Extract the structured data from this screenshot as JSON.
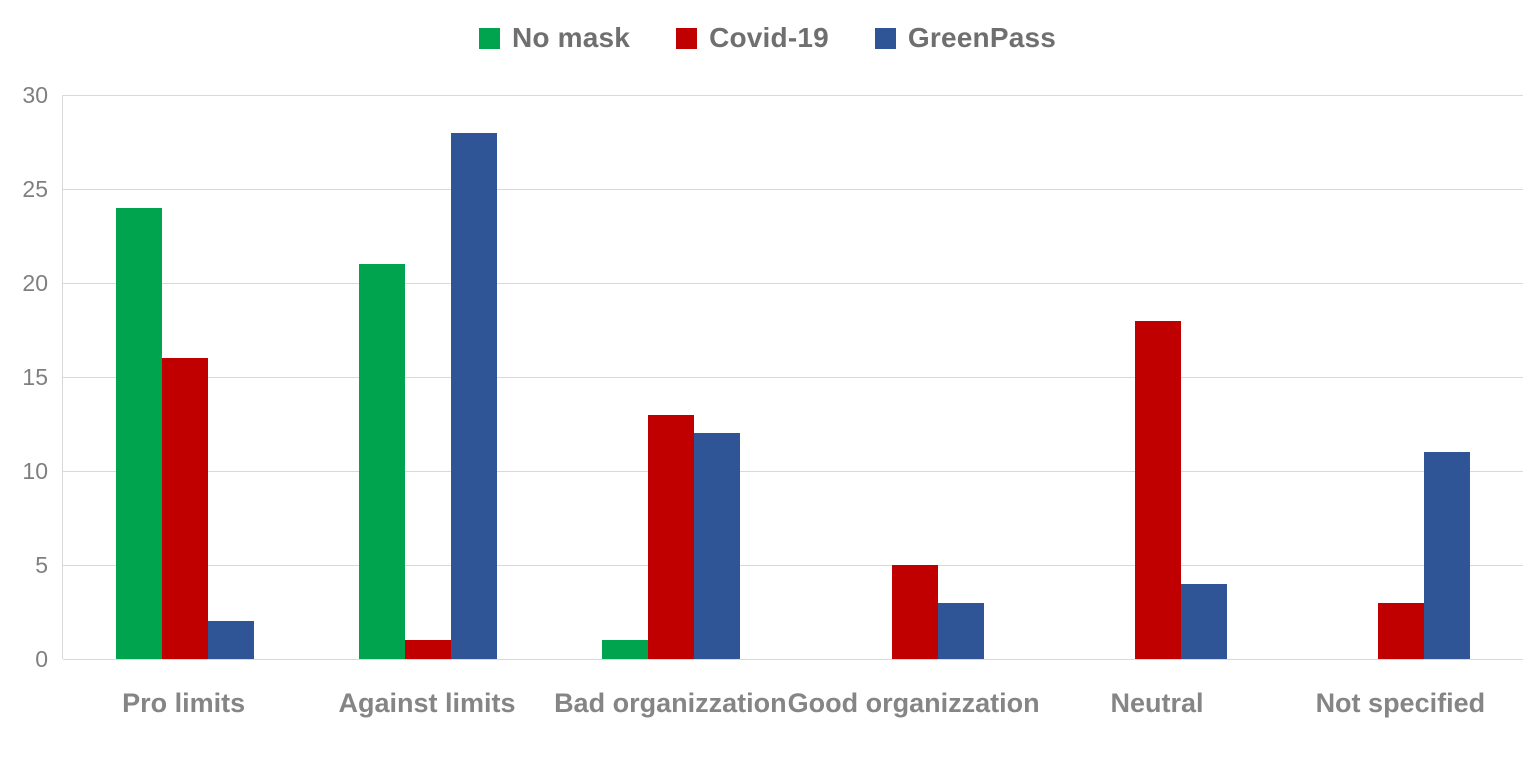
{
  "chart_data": {
    "type": "bar",
    "title": "",
    "xlabel": "",
    "ylabel": "",
    "categories": [
      "Pro limits",
      "Against limits",
      "Bad organizzation",
      "Good organizzation",
      "Neutral",
      "Not specified"
    ],
    "series": [
      {
        "name": "No mask",
        "color": "#00A44F",
        "values": [
          24,
          21,
          1,
          0,
          0,
          0
        ]
      },
      {
        "name": "Covid-19",
        "color": "#C00000",
        "values": [
          16,
          1,
          13,
          5,
          18,
          3
        ]
      },
      {
        "name": "GreenPass",
        "color": "#2F5597",
        "values": [
          2,
          28,
          12,
          3,
          4,
          11
        ]
      }
    ],
    "ylim": [
      0,
      30
    ],
    "yticks": [
      0,
      5,
      10,
      15,
      20,
      25,
      30
    ],
    "grid": true,
    "legend_position": "top-center",
    "gridline_color": "#D9D9D9",
    "axis_text_color": "#7F7F7F",
    "legend_text_color": "#6F6F6F",
    "background_color": "#FFFFFF"
  }
}
